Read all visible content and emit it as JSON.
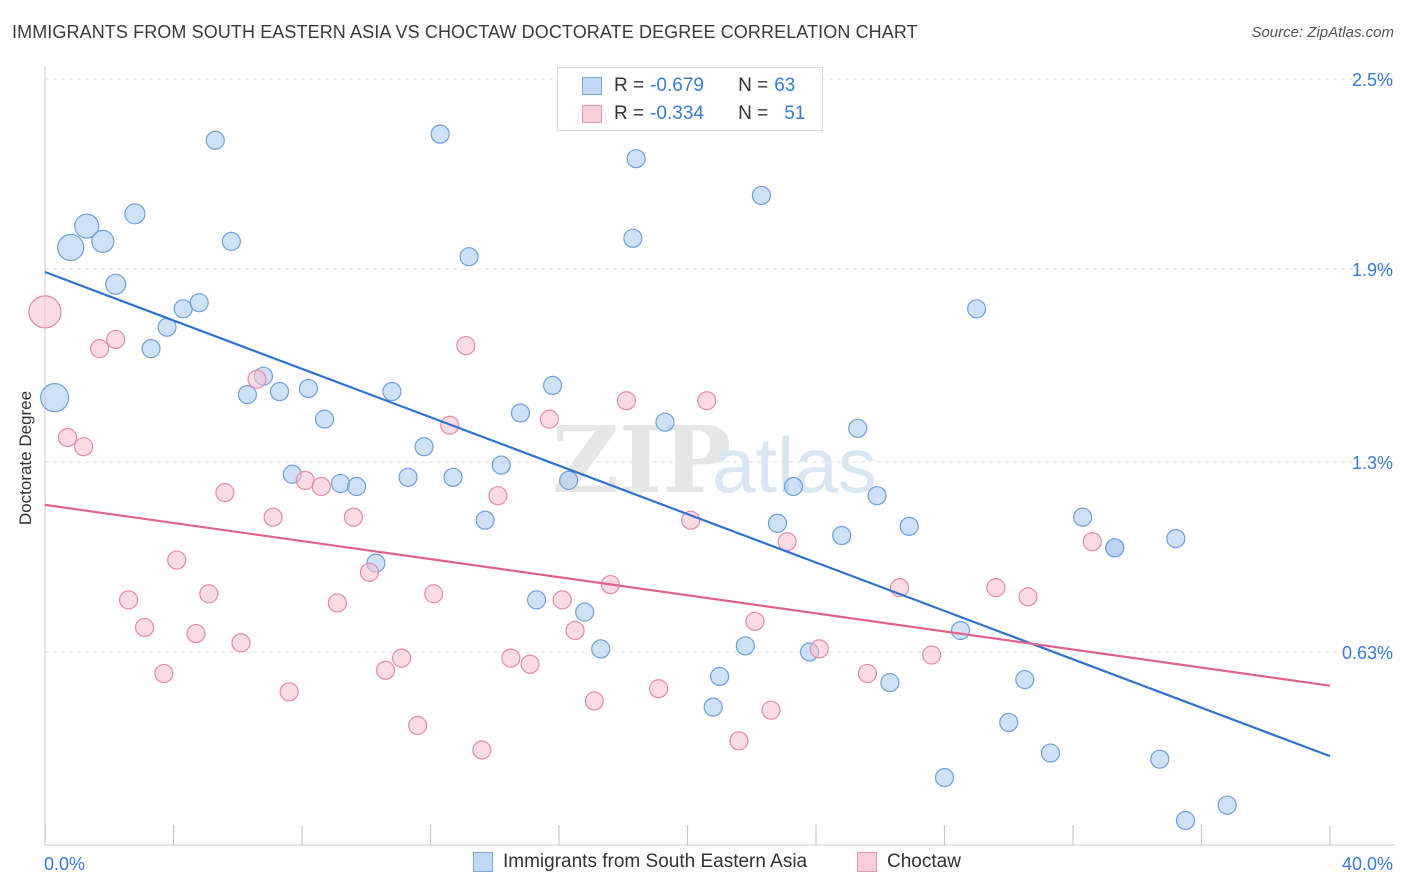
{
  "title": "IMMIGRANTS FROM SOUTH EASTERN ASIA VS CHOCTAW DOCTORATE DEGREE CORRELATION CHART",
  "source": "Source: ZipAtlas.com",
  "legend": {
    "rows": [
      {
        "r_label": "R = ",
        "r_value": "-0.679",
        "n_label": "N = ",
        "n_value": "63"
      },
      {
        "r_label": "R = ",
        "r_value": "-0.334",
        "n_label": "N = ",
        "n_value": "51"
      }
    ]
  },
  "chart_data": {
    "type": "scatter",
    "title": "IMMIGRANTS FROM SOUTH EASTERN ASIA VS CHOCTAW DOCTORATE DEGREE CORRELATION CHART",
    "xlabel": "",
    "ylabel": "Doctorate Degree",
    "xlim": [
      0,
      40
    ],
    "ylim": [
      0,
      2.5
    ],
    "x_tick_labels": [
      "0.0%",
      "40.0%"
    ],
    "y_tick_labels": [
      "0.63%",
      "1.3%",
      "1.9%",
      "2.5%"
    ],
    "y_ticks": [
      0.63,
      1.25,
      1.88,
      2.5
    ],
    "grid": true,
    "legend_position": "bottom",
    "watermark": {
      "bold": "ZIP",
      "light": "atlas"
    },
    "series": [
      {
        "name": "Immigrants from South Eastern Asia",
        "color": "#a8c8f0",
        "stroke": "#6f9fdc",
        "trend_color": "#2f72d0",
        "trend": [
          [
            0,
            1.87
          ],
          [
            40,
            0.29
          ]
        ],
        "points": [
          [
            0.3,
            1.46,
            14
          ],
          [
            0.8,
            1.95,
            13
          ],
          [
            1.3,
            2.02,
            12
          ],
          [
            1.8,
            1.97,
            11
          ],
          [
            2.2,
            1.83,
            10
          ],
          [
            2.8,
            2.06,
            10
          ],
          [
            3.3,
            1.62,
            9
          ],
          [
            3.8,
            1.69,
            9
          ],
          [
            4.3,
            1.75,
            9
          ],
          [
            4.8,
            1.77,
            9
          ],
          [
            5.3,
            2.3,
            9
          ],
          [
            5.8,
            1.97,
            9
          ],
          [
            6.3,
            1.47,
            9
          ],
          [
            6.8,
            1.53,
            9
          ],
          [
            7.3,
            1.48,
            9
          ],
          [
            7.7,
            1.21,
            9
          ],
          [
            8.2,
            1.49,
            9
          ],
          [
            8.7,
            1.39,
            9
          ],
          [
            9.2,
            1.18,
            9
          ],
          [
            9.7,
            1.17,
            9
          ],
          [
            10.3,
            0.92,
            9
          ],
          [
            10.8,
            1.48,
            9
          ],
          [
            11.3,
            1.2,
            9
          ],
          [
            11.8,
            1.3,
            9
          ],
          [
            12.3,
            2.32,
            9
          ],
          [
            12.7,
            1.2,
            9
          ],
          [
            13.2,
            1.92,
            9
          ],
          [
            13.7,
            1.06,
            9
          ],
          [
            14.2,
            1.24,
            9
          ],
          [
            14.8,
            1.41,
            9
          ],
          [
            15.3,
            0.8,
            9
          ],
          [
            15.8,
            1.5,
            9
          ],
          [
            16.3,
            1.19,
            9
          ],
          [
            16.8,
            0.76,
            9
          ],
          [
            17.3,
            0.64,
            9
          ],
          [
            18.3,
            1.98,
            9
          ],
          [
            18.4,
            2.24,
            9
          ],
          [
            19.3,
            1.38,
            9
          ],
          [
            20.8,
            0.45,
            9
          ],
          [
            21.0,
            0.55,
            9
          ],
          [
            21.8,
            0.65,
            9
          ],
          [
            22.3,
            2.12,
            9
          ],
          [
            22.8,
            1.05,
            9
          ],
          [
            23.3,
            1.17,
            9
          ],
          [
            23.8,
            0.63,
            9
          ],
          [
            24.8,
            1.01,
            9
          ],
          [
            25.3,
            1.36,
            9
          ],
          [
            25.9,
            1.14,
            9
          ],
          [
            26.3,
            0.53,
            9
          ],
          [
            26.9,
            1.04,
            9
          ],
          [
            28.0,
            0.22,
            9
          ],
          [
            28.5,
            0.7,
            9
          ],
          [
            29.0,
            1.75,
            9
          ],
          [
            30.0,
            0.4,
            9
          ],
          [
            30.5,
            0.54,
            9
          ],
          [
            31.3,
            0.3,
            9
          ],
          [
            32.3,
            1.07,
            9
          ],
          [
            33.3,
            0.97,
            9
          ],
          [
            34.7,
            0.28,
            9
          ],
          [
            35.2,
            1.0,
            9
          ],
          [
            35.5,
            0.08,
            9
          ],
          [
            36.8,
            0.13,
            9
          ],
          [
            33.3,
            0.97,
            9
          ]
        ]
      },
      {
        "name": "Choctaw",
        "color": "#f7bfd0",
        "stroke": "#e58aa8",
        "trend_color": "#e0628c",
        "trend": [
          [
            0,
            1.11
          ],
          [
            40,
            0.52
          ]
        ],
        "points": [
          [
            0.0,
            1.74,
            16
          ],
          [
            0.7,
            1.33,
            9
          ],
          [
            1.2,
            1.3,
            9
          ],
          [
            1.7,
            1.62,
            9
          ],
          [
            2.2,
            1.65,
            9
          ],
          [
            2.6,
            0.8,
            9
          ],
          [
            3.1,
            0.71,
            9
          ],
          [
            3.7,
            0.56,
            9
          ],
          [
            4.1,
            0.93,
            9
          ],
          [
            4.7,
            0.69,
            9
          ],
          [
            5.1,
            0.82,
            9
          ],
          [
            5.6,
            1.15,
            9
          ],
          [
            6.1,
            0.66,
            9
          ],
          [
            6.6,
            1.52,
            9
          ],
          [
            7.1,
            1.07,
            9
          ],
          [
            7.6,
            0.5,
            9
          ],
          [
            8.1,
            1.19,
            9
          ],
          [
            8.6,
            1.17,
            9
          ],
          [
            9.1,
            0.79,
            9
          ],
          [
            9.6,
            1.07,
            9
          ],
          [
            10.1,
            0.89,
            9
          ],
          [
            10.6,
            0.57,
            9
          ],
          [
            11.1,
            0.61,
            9
          ],
          [
            11.6,
            0.39,
            9
          ],
          [
            12.1,
            0.82,
            9
          ],
          [
            12.6,
            1.37,
            9
          ],
          [
            13.1,
            1.63,
            9
          ],
          [
            13.6,
            0.31,
            9
          ],
          [
            14.1,
            1.14,
            9
          ],
          [
            14.5,
            0.61,
            9
          ],
          [
            15.1,
            0.59,
            9
          ],
          [
            15.7,
            1.39,
            9
          ],
          [
            16.1,
            0.8,
            9
          ],
          [
            16.5,
            0.7,
            9
          ],
          [
            17.1,
            0.47,
            9
          ],
          [
            17.6,
            0.85,
            9
          ],
          [
            18.1,
            1.45,
            9
          ],
          [
            19.1,
            0.51,
            9
          ],
          [
            20.1,
            1.06,
            9
          ],
          [
            20.6,
            1.45,
            9
          ],
          [
            21.6,
            0.34,
            9
          ],
          [
            22.1,
            0.73,
            9
          ],
          [
            22.6,
            0.44,
            9
          ],
          [
            23.1,
            0.99,
            9
          ],
          [
            24.1,
            0.64,
            9
          ],
          [
            25.6,
            0.56,
            9
          ],
          [
            26.6,
            0.84,
            9
          ],
          [
            27.6,
            0.62,
            9
          ],
          [
            29.6,
            0.84,
            9
          ],
          [
            30.6,
            0.81,
            9
          ],
          [
            32.6,
            0.99,
            9
          ]
        ]
      }
    ]
  }
}
